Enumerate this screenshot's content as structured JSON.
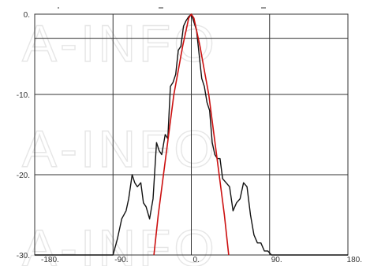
{
  "watermark": "A-INFO",
  "chart_data": {
    "type": "line",
    "xlim": [
      -180,
      180
    ],
    "ylim": [
      -30,
      0
    ],
    "x_ticks": [
      -180,
      -90,
      0,
      90,
      180
    ],
    "x_tick_labels": [
      "-180.",
      "-90.",
      "0.",
      "90.",
      "180."
    ],
    "y_ticks": [
      0,
      -10,
      -20,
      -30
    ],
    "y_tick_labels": [
      "0.",
      "-10.",
      "-20.",
      "-30."
    ],
    "reference_line_y": -3,
    "grid": true,
    "colors": {
      "measured": "#111111",
      "simulated": "#cc1111",
      "grid": "#333333"
    },
    "series": [
      {
        "id": "measured",
        "x": [
          -180,
          -90,
          -85,
          -80,
          -75,
          -72,
          -68,
          -65,
          -62,
          -58,
          -55,
          -52,
          -48,
          -44,
          -40,
          -37,
          -34,
          -30,
          -27,
          -24,
          -21,
          -18,
          -15,
          -12,
          -9,
          -6,
          -3,
          0,
          3,
          6,
          9,
          12,
          15,
          18,
          21,
          24,
          27,
          30,
          33,
          36,
          40,
          44,
          48,
          52,
          56,
          60,
          64,
          68,
          72,
          76,
          80,
          84,
          88,
          92,
          180
        ],
        "y": [
          -30,
          -30,
          -28,
          -25.5,
          -24.5,
          -23,
          -20,
          -21,
          -21.5,
          -21,
          -23.5,
          -24,
          -25.5,
          -23,
          -16,
          -17,
          -17.5,
          -15,
          -15.5,
          -9,
          -8.5,
          -7.5,
          -4.5,
          -4,
          -1.5,
          -0.8,
          -0.3,
          0,
          -1,
          -2,
          -5,
          -8,
          -9,
          -11,
          -12,
          -16,
          -17.5,
          -18,
          -18,
          -20.5,
          -21,
          -21.5,
          -24.5,
          -23.5,
          -23,
          -21,
          -21.5,
          -25,
          -27.5,
          -28.5,
          -28.5,
          -29.5,
          -29.5,
          -30,
          -30
        ]
      },
      {
        "id": "simulated",
        "x": [
          -43,
          -38,
          -32,
          -26,
          -20,
          -15,
          -10,
          -6,
          -3,
          0,
          3,
          6,
          10,
          15,
          20,
          26,
          32,
          38,
          43
        ],
        "y": [
          -30,
          -25,
          -20,
          -15,
          -10,
          -7,
          -4,
          -2,
          -0.5,
          0,
          -0.5,
          -2,
          -4,
          -7,
          -10,
          -15,
          -20,
          -25,
          -30
        ]
      }
    ]
  }
}
